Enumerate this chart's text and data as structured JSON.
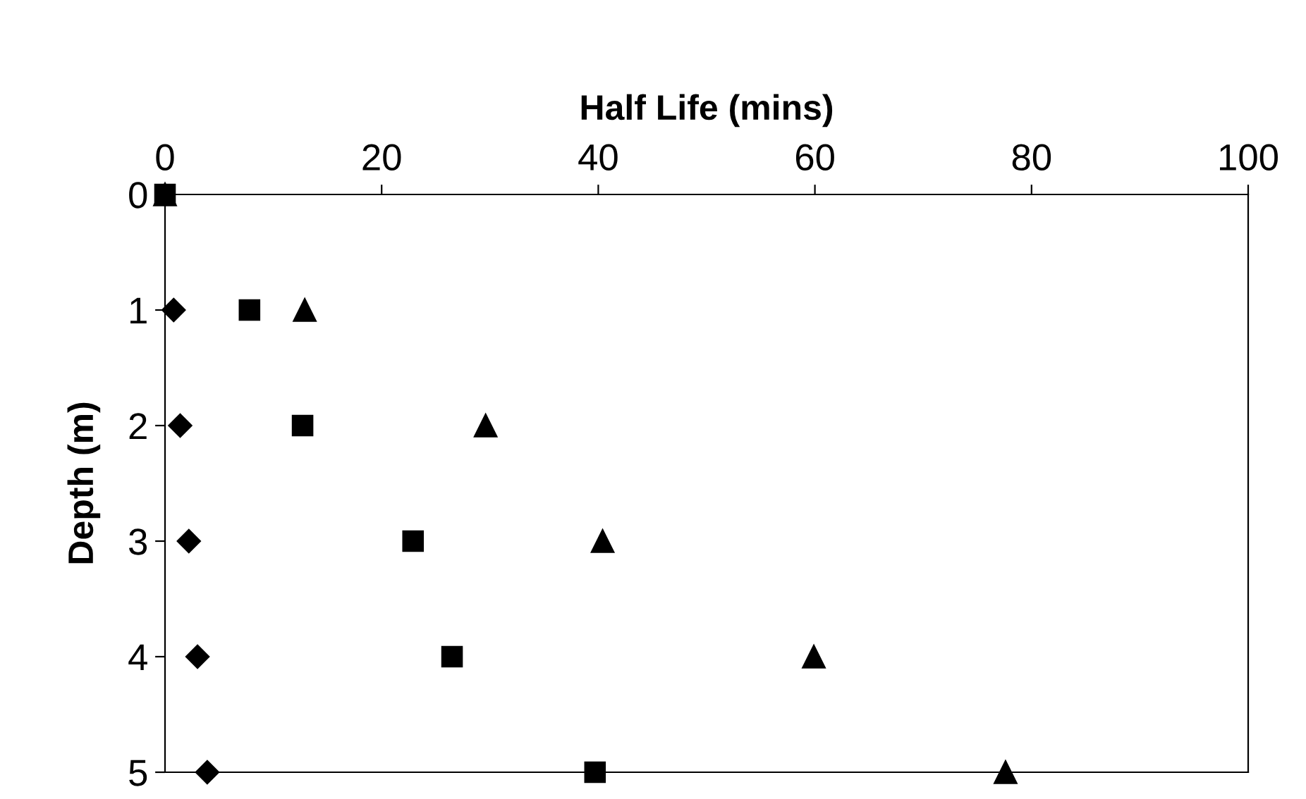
{
  "chart_data": {
    "type": "scatter",
    "xlabel": "Half Life (mins)",
    "ylabel": "Depth (m)",
    "xlim": [
      0,
      100
    ],
    "xticks": [
      0,
      20,
      40,
      60,
      80,
      100
    ],
    "ylim": [
      5,
      0
    ],
    "yticks": [
      0,
      1,
      2,
      3,
      4,
      5
    ],
    "grid": false,
    "legend": false,
    "series": [
      {
        "color": "#000000",
        "marker": "diamond",
        "x": [
          null,
          0.8,
          1.4,
          2.2,
          3.0,
          3.9
        ],
        "values": [
          null,
          1,
          2,
          3,
          4,
          5
        ]
      },
      {
        "color": "#000000",
        "marker": "square",
        "x": [
          0,
          7.8,
          12.7,
          22.9,
          26.5,
          39.7
        ],
        "values": [
          0,
          1,
          2,
          3,
          4,
          5
        ]
      },
      {
        "color": "#000000",
        "marker": "triangle",
        "x": [
          0,
          12.9,
          29.6,
          40.4,
          59.9,
          77.6
        ],
        "values": [
          0,
          1,
          2,
          3,
          4,
          5
        ]
      }
    ]
  }
}
